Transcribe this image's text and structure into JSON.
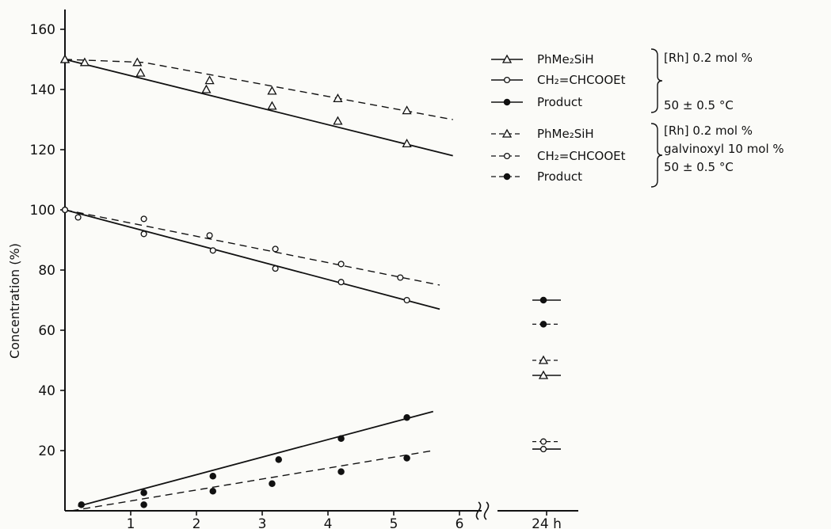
{
  "chart_data": {
    "type": "line",
    "xlabel": "",
    "ylabel": "Concentration  (%)",
    "x_ticks": [
      "1",
      "2",
      "3",
      "4",
      "5",
      "6"
    ],
    "x_break_tick": "24 h",
    "y_ticks": [
      "20",
      "40",
      "60",
      "80",
      "100",
      "120",
      "140",
      "160"
    ],
    "xlim": [
      0,
      6
    ],
    "ylim": [
      0,
      165
    ],
    "legend_groups": [
      {
        "condition_lines": [
          "[Rh] 0.2  mol %",
          "50 ± 0.5 °C"
        ],
        "entries": [
          {
            "label": "PhMe₂SiH",
            "marker": "triangle",
            "dashed": false
          },
          {
            "label": "CH₂=CHCOOEt",
            "marker": "circle-open",
            "dashed": false
          },
          {
            "label": "Product",
            "marker": "circle-filled",
            "dashed": false
          }
        ]
      },
      {
        "condition_lines": [
          "[Rh] 0.2  mol %",
          "galvinoxyl  10 mol %",
          "50 ± 0.5 °C"
        ],
        "entries": [
          {
            "label": "PhMe₂SiH",
            "marker": "triangle",
            "dashed": true
          },
          {
            "label": "CH₂=CHCOOEt",
            "marker": "circle-open",
            "dashed": true
          },
          {
            "label": "Product",
            "marker": "circle-filled",
            "dashed": true
          }
        ]
      }
    ],
    "series": [
      {
        "marker": "triangle",
        "dashed": false,
        "points": [
          [
            0,
            150
          ],
          [
            1.15,
            145.5
          ],
          [
            2.15,
            140
          ],
          [
            3.15,
            134.5
          ],
          [
            4.15,
            129.5
          ],
          [
            5.2,
            122
          ]
        ],
        "fit": [
          [
            0,
            150
          ],
          [
            5.9,
            118
          ]
        ],
        "at_24h": 45
      },
      {
        "marker": "circle-open",
        "dashed": false,
        "points": [
          [
            0,
            100
          ],
          [
            0.2,
            97.5
          ],
          [
            1.2,
            92
          ],
          [
            2.25,
            86.5
          ],
          [
            3.2,
            80.5
          ],
          [
            4.2,
            76
          ],
          [
            5.2,
            70
          ]
        ],
        "fit": [
          [
            0,
            100
          ],
          [
            5.7,
            67
          ]
        ],
        "at_24h": 20.5
      },
      {
        "marker": "circle-filled",
        "dashed": false,
        "points": [
          [
            0.25,
            2
          ],
          [
            1.2,
            6
          ],
          [
            2.25,
            11.5
          ],
          [
            3.25,
            17
          ],
          [
            4.2,
            24
          ],
          [
            5.2,
            31
          ]
        ],
        "fit": [
          [
            0.2,
            1.5
          ],
          [
            5.6,
            33
          ]
        ],
        "at_24h": 70
      },
      {
        "marker": "triangle",
        "dashed": true,
        "points": [
          [
            0,
            150
          ],
          [
            0.3,
            149
          ],
          [
            1.1,
            149
          ],
          [
            2.2,
            143
          ],
          [
            3.15,
            139.5
          ],
          [
            4.15,
            137
          ],
          [
            5.2,
            133
          ]
        ],
        "fit": [
          [
            0,
            150
          ],
          [
            1.2,
            149
          ],
          [
            5.9,
            130
          ]
        ],
        "at_24h": 50
      },
      {
        "marker": "circle-open",
        "dashed": true,
        "points": [
          [
            0,
            100
          ],
          [
            1.2,
            97
          ],
          [
            2.2,
            91.5
          ],
          [
            3.2,
            87
          ],
          [
            4.2,
            82
          ],
          [
            5.1,
            77.5
          ]
        ],
        "fit": [
          [
            0,
            100
          ],
          [
            5.7,
            75
          ]
        ],
        "at_24h": 23
      },
      {
        "marker": "circle-filled",
        "dashed": true,
        "points": [
          [
            1.2,
            2
          ],
          [
            2.25,
            6.5
          ],
          [
            3.15,
            9
          ],
          [
            4.2,
            13
          ],
          [
            5.2,
            17.5
          ]
        ],
        "fit": [
          [
            0.1,
            0
          ],
          [
            5.6,
            20
          ]
        ],
        "at_24h": 62
      }
    ]
  }
}
